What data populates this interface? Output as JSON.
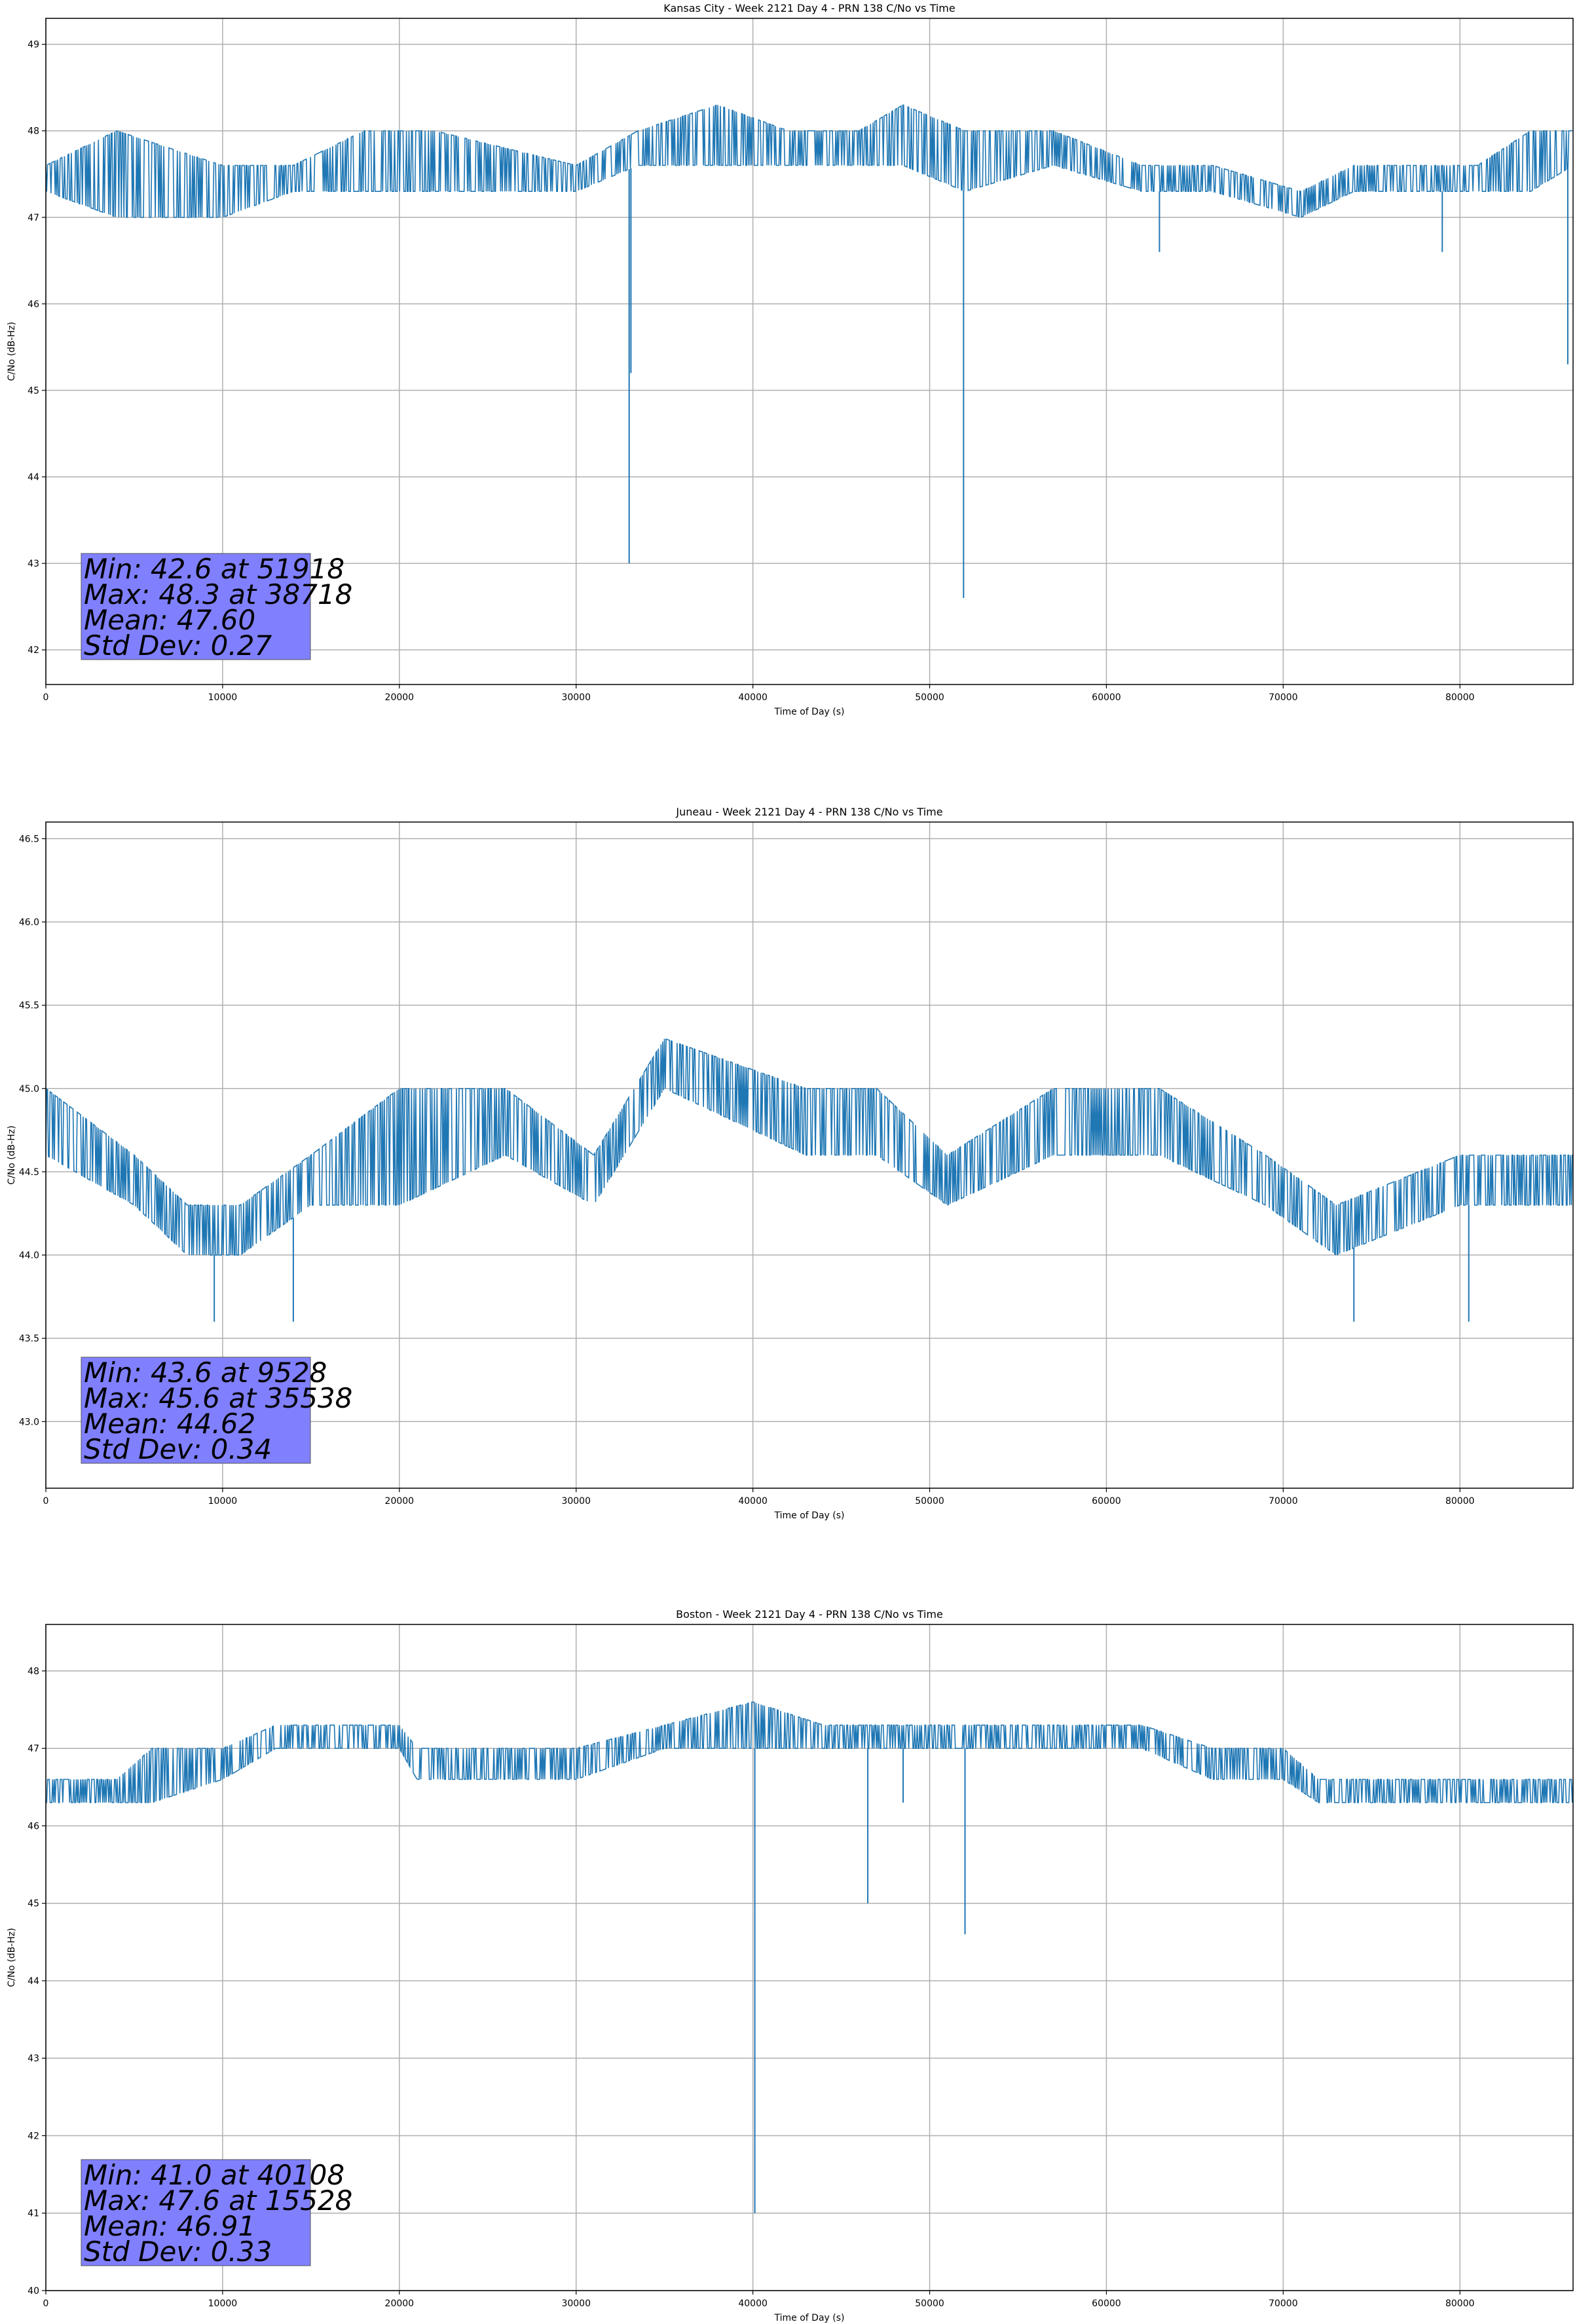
{
  "colors": {
    "series": "#1f77b4",
    "stats_box": "#8080ff",
    "grid": "#b0b0b0"
  },
  "chart_data": [
    {
      "type": "line",
      "title": "Kansas City - Week 2121 Day 4 - PRN 138 C/No vs Time",
      "xlabel": "Time of Day (s)",
      "ylabel": "C/No (dB-Hz)",
      "xlim": [
        0,
        86400
      ],
      "ylim": [
        41.6,
        49.3
      ],
      "xticks": [
        "0",
        "10000",
        "20000",
        "30000",
        "40000",
        "50000",
        "60000",
        "70000",
        "80000"
      ],
      "yticks": [
        "42",
        "43",
        "44",
        "45",
        "46",
        "47",
        "48",
        "49"
      ],
      "grid": true,
      "band": [
        [
          0,
          47.3,
          47.6
        ],
        [
          4000,
          47.0,
          48.0
        ],
        [
          10000,
          47.0,
          47.6
        ],
        [
          14000,
          47.3,
          47.6
        ],
        [
          18000,
          47.3,
          48.0
        ],
        [
          22000,
          47.3,
          48.0
        ],
        [
          30000,
          47.3,
          47.6
        ],
        [
          33500,
          47.6,
          48.0
        ],
        [
          38000,
          47.6,
          48.3
        ],
        [
          42000,
          47.6,
          48.0
        ],
        [
          46000,
          47.6,
          48.0
        ],
        [
          48500,
          47.6,
          48.3
        ],
        [
          52000,
          47.3,
          48.0
        ],
        [
          57000,
          47.6,
          48.0
        ],
        [
          62000,
          47.3,
          47.6
        ],
        [
          66000,
          47.3,
          47.6
        ],
        [
          71000,
          47.0,
          47.3
        ],
        [
          74000,
          47.3,
          47.6
        ],
        [
          76000,
          47.3,
          47.6
        ],
        [
          81000,
          47.3,
          47.6
        ],
        [
          84000,
          47.3,
          48.0
        ],
        [
          86400,
          47.6,
          48.0
        ]
      ],
      "spikes": [
        [
          33000,
          43.0
        ],
        [
          33100,
          45.2
        ],
        [
          51918,
          42.6
        ],
        [
          63000,
          46.6
        ],
        [
          79000,
          46.6
        ],
        [
          86100,
          45.3
        ]
      ],
      "stats": {
        "min": "Min: 42.6 at 51918",
        "max": "Max: 48.3 at 38718",
        "mean": "Mean: 47.60",
        "std": "Std Dev: 0.27"
      }
    },
    {
      "type": "line",
      "title": "Juneau - Week 2121 Day 4 - PRN 138 C/No vs Time",
      "xlabel": "Time of Day (s)",
      "ylabel": "C/No (dB-Hz)",
      "xlim": [
        0,
        86400
      ],
      "ylim": [
        42.6,
        46.6
      ],
      "xticks": [
        "0",
        "10000",
        "20000",
        "30000",
        "40000",
        "50000",
        "60000",
        "70000",
        "80000"
      ],
      "yticks": [
        "43.0",
        "43.5",
        "44.0",
        "44.5",
        "45.0",
        "45.5",
        "46.0",
        "46.5"
      ],
      "grid": true,
      "band": [
        [
          0,
          44.6,
          45.0
        ],
        [
          5000,
          44.3,
          44.6
        ],
        [
          8000,
          44.0,
          44.3
        ],
        [
          11000,
          44.0,
          44.3
        ],
        [
          15000,
          44.3,
          44.6
        ],
        [
          20000,
          44.3,
          45.0
        ],
        [
          26000,
          44.6,
          45.0
        ],
        [
          31000,
          44.3,
          44.6
        ],
        [
          35000,
          45.0,
          45.3
        ],
        [
          43000,
          44.6,
          45.0
        ],
        [
          47000,
          44.6,
          45.0
        ],
        [
          51000,
          44.3,
          44.6
        ],
        [
          57000,
          44.6,
          45.0
        ],
        [
          63000,
          44.6,
          45.0
        ],
        [
          69000,
          44.3,
          44.6
        ],
        [
          73000,
          44.0,
          44.3
        ],
        [
          80000,
          44.3,
          44.6
        ],
        [
          86400,
          44.3,
          44.6
        ]
      ],
      "spikes": [
        [
          9528,
          43.6
        ],
        [
          14000,
          43.6
        ],
        [
          74000,
          43.6
        ],
        [
          80500,
          43.6
        ]
      ],
      "stats": {
        "min": "Min: 43.6 at 9528",
        "max": "Max: 45.6 at 35538",
        "mean": "Mean: 44.62",
        "std": "Std Dev: 0.34"
      }
    },
    {
      "type": "line",
      "title": "Boston - Week 2121 Day 4 - PRN 138 C/No vs Time",
      "xlabel": "Time of Day (s)",
      "ylabel": "C/No (dB-Hz)",
      "xlim": [
        0,
        86400
      ],
      "ylim": [
        40.0,
        48.6
      ],
      "xticks": [
        "0",
        "10000",
        "20000",
        "30000",
        "40000",
        "50000",
        "60000",
        "70000",
        "80000"
      ],
      "yticks": [
        "40",
        "41",
        "42",
        "43",
        "44",
        "45",
        "46",
        "47",
        "48"
      ],
      "grid": true,
      "band": [
        [
          0,
          46.3,
          46.6
        ],
        [
          4000,
          46.3,
          46.6
        ],
        [
          6000,
          46.3,
          47.0
        ],
        [
          10000,
          46.6,
          47.0
        ],
        [
          13000,
          47.0,
          47.3
        ],
        [
          20000,
          47.0,
          47.3
        ],
        [
          21000,
          46.6,
          47.0
        ],
        [
          26000,
          46.6,
          47.0
        ],
        [
          30000,
          46.6,
          47.0
        ],
        [
          35000,
          47.0,
          47.3
        ],
        [
          40000,
          47.0,
          47.6
        ],
        [
          44000,
          47.0,
          47.3
        ],
        [
          52000,
          47.0,
          47.3
        ],
        [
          57000,
          47.0,
          47.3
        ],
        [
          62000,
          47.0,
          47.3
        ],
        [
          66000,
          46.6,
          47.0
        ],
        [
          70000,
          46.6,
          47.0
        ],
        [
          72000,
          46.3,
          46.6
        ],
        [
          80000,
          46.3,
          46.6
        ],
        [
          86400,
          46.3,
          46.6
        ]
      ],
      "spikes": [
        [
          40108,
          41.0
        ],
        [
          46500,
          45.0
        ],
        [
          52000,
          44.6
        ],
        [
          48500,
          46.3
        ]
      ],
      "stats": {
        "min": "Min: 41.0 at 40108",
        "max": "Max: 47.6 at 15528",
        "mean": "Mean: 46.91",
        "std": "Std Dev: 0.33"
      }
    }
  ]
}
